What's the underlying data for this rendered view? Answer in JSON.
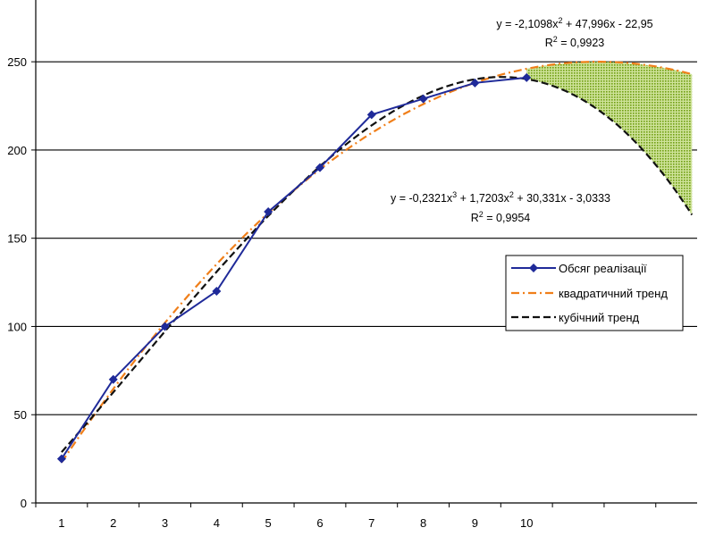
{
  "chart_data": {
    "type": "line",
    "x": [
      1,
      2,
      3,
      4,
      5,
      6,
      7,
      8,
      9,
      10
    ],
    "xlim": [
      0.5,
      13.3
    ],
    "ylim": [
      0,
      285
    ],
    "yticks": [
      0,
      50,
      100,
      150,
      200,
      250
    ],
    "series": [
      {
        "name": "Обсяг реалізації",
        "values": [
          25,
          70,
          100,
          120,
          165,
          190,
          220,
          229,
          238,
          241
        ],
        "color": "#1f2a99",
        "marker": "diamond"
      },
      {
        "name": "квадратичний тренд",
        "color": "#f07f1a",
        "style": "dash-dot",
        "formula": {
          "a": -2.1098,
          "b": 47.996,
          "c": -22.95
        },
        "x_range": [
          1,
          13.2
        ]
      },
      {
        "name": "кубічний тренд",
        "color": "#111111",
        "style": "dashed",
        "formula": {
          "d": -0.2321,
          "a": 1.7203,
          "b": 30.331,
          "c": -3.0333
        },
        "x_range": [
          1,
          13.2
        ]
      }
    ],
    "shaded_forecast": {
      "x_range": [
        10,
        13.2
      ],
      "color": "#7fae1f"
    },
    "annotations": {
      "quad_eq": {
        "prefix": "y = -2,1098x",
        "sup": "2",
        "suffix": " + 47,996x - 22,95"
      },
      "quad_r2": {
        "prefix": "R",
        "sup": "2",
        "suffix": " = 0,9923"
      },
      "cubic_eq": {
        "p1": "y = -0,2321x",
        "s1": "3",
        "p2": " + 1,7203x",
        "s2": "2",
        "p3": " + 30,331x - 3,0333"
      },
      "cubic_r2": {
        "prefix": "R",
        "sup": "2",
        "suffix": " = 0,9954"
      }
    },
    "legend": {
      "position": "right",
      "items": [
        "Обсяг реалізації",
        "квадратичний тренд",
        "кубічний тренд"
      ]
    },
    "grid": true
  }
}
